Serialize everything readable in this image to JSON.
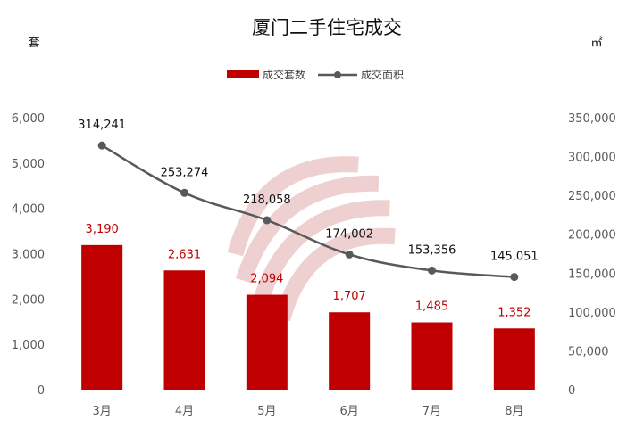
{
  "chart_data": {
    "type": "bar",
    "title": "厦门二手住宅成交",
    "categories": [
      "3月",
      "4月",
      "5月",
      "6月",
      "7月",
      "8月"
    ],
    "series": [
      {
        "name": "成交套数",
        "type": "bar",
        "axis": "left",
        "color": "#c00000",
        "values": [
          3190,
          2631,
          2094,
          1707,
          1485,
          1352
        ],
        "labels": [
          "3,190",
          "2,631",
          "2,094",
          "1,707",
          "1,485",
          "1,352"
        ]
      },
      {
        "name": "成交面积",
        "type": "line",
        "axis": "right",
        "color": "#595959",
        "values": [
          314241,
          253274,
          218058,
          174002,
          153356,
          145051
        ],
        "labels": [
          "314,241",
          "253,274",
          "218,058",
          "174,002",
          "153,356",
          "145,051"
        ]
      }
    ],
    "y_left": {
      "unit": "套",
      "range": [
        0,
        6000
      ],
      "ticks": [
        0,
        1000,
        2000,
        3000,
        4000,
        5000,
        6000
      ],
      "tick_labels": [
        "0",
        "1,000",
        "2,000",
        "3,000",
        "4,000",
        "5,000",
        "6,000"
      ]
    },
    "y_right": {
      "unit": "㎡",
      "range": [
        0,
        350000
      ],
      "ticks": [
        0,
        50000,
        100000,
        150000,
        200000,
        250000,
        300000,
        350000
      ],
      "tick_labels": [
        "0",
        "50,000",
        "100,000",
        "150,000",
        "200,000",
        "250,000",
        "300,000",
        "350,000"
      ]
    },
    "legend": {
      "position": "top-center"
    },
    "grid": false
  }
}
